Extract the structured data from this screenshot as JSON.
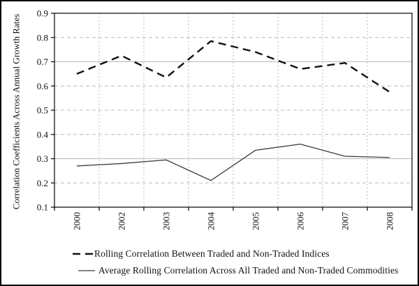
{
  "chart_data": {
    "type": "line",
    "categories": [
      "2000",
      "2002",
      "2003",
      "2004",
      "2005",
      "2006",
      "2007",
      "2008"
    ],
    "series": [
      {
        "name": "Rolling Correlation Between Traded and Non-Traded Indices",
        "style": "dashed",
        "values": [
          0.65,
          0.725,
          0.635,
          0.785,
          0.74,
          0.67,
          0.695,
          0.575
        ]
      },
      {
        "name": "Average Rolling Correlation Across All Traded and Non-Traded Commodities",
        "style": "solid",
        "values": [
          0.27,
          0.28,
          0.295,
          0.21,
          0.335,
          0.36,
          0.31,
          0.305
        ]
      }
    ],
    "title": "",
    "xlabel": "",
    "ylabel": "Correlation Coefficients Across Annual Growth Rates",
    "ylim": [
      0.1,
      0.9
    ],
    "yticks": [
      0.1,
      0.2,
      0.3,
      0.4,
      0.5,
      0.6,
      0.7,
      0.8,
      0.9
    ],
    "ytick_labels": [
      "0.1",
      "0.2",
      "0.3",
      "0.4",
      "0.5",
      "0.6",
      "0.7",
      "0.8",
      "0.9"
    ],
    "grid": {
      "horizontal": true,
      "vertical": true,
      "gridline_color": "#b8b8b8",
      "solid_gridlines": [
        0.3,
        0.7
      ]
    },
    "legend_position": "bottom-left",
    "colors": {
      "dashed_series": "#111111",
      "solid_series": "#3a3a3a",
      "axis": "#000000"
    }
  }
}
